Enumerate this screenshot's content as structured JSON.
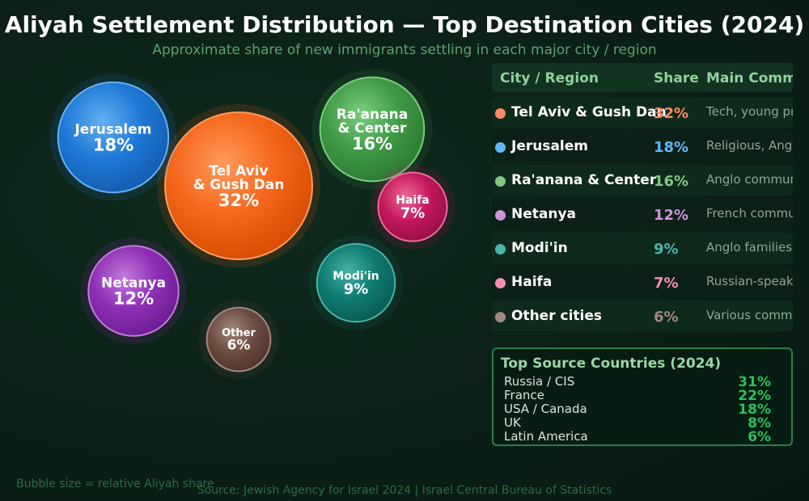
{
  "title": "Aliyah Settlement Distribution — Top Destination Cities (2024)",
  "subtitle": "Approximate share of new immigrants settling in each major city / region",
  "chart_data": {
    "type": "bubble",
    "title": "Aliyah Settlement Distribution — Top Destination Cities (2024)",
    "subtitle": "Approximate share of new immigrants settling in each major city / region",
    "bubbles": [
      {
        "name": "Tel Aviv & Gush Dan",
        "lines": [
          "Tel Aviv",
          "& Gush Dan"
        ],
        "value": 32,
        "label": "32%",
        "color": "#f4661b",
        "light": "#ff9a5c",
        "dark": "#d94f05"
      },
      {
        "name": "Jerusalem",
        "lines": [
          "Jerusalem"
        ],
        "value": 18,
        "label": "18%",
        "color": "#1e78d6",
        "light": "#64b0f2",
        "dark": "#155fb4"
      },
      {
        "name": "Ra'anana & Center",
        "lines": [
          "Ra'anana",
          "& Center"
        ],
        "value": 16,
        "label": "16%",
        "color": "#3f9a46",
        "light": "#7acc7e",
        "dark": "#2f7d35"
      },
      {
        "name": "Netanya",
        "lines": [
          "Netanya"
        ],
        "value": 12,
        "label": "12%",
        "color": "#8e2fb5",
        "light": "#c27adb",
        "dark": "#6f1f96"
      },
      {
        "name": "Modi'in",
        "lines": [
          "Modi'in"
        ],
        "value": 9,
        "label": "9%",
        "color": "#0f7a70",
        "light": "#47b3a7",
        "dark": "#0a5f57"
      },
      {
        "name": "Haifa",
        "lines": [
          "Haifa"
        ],
        "value": 7,
        "label": "7%",
        "color": "#c2185b",
        "light": "#ee6a9a",
        "dark": "#9b1049"
      },
      {
        "name": "Other",
        "lines": [
          "Other"
        ],
        "value": 6,
        "label": "6%",
        "color": "#6d4c41",
        "light": "#a1887f",
        "dark": "#54362d"
      }
    ],
    "size_note": "Bubble size = relative Aliyah share"
  },
  "table": {
    "headers": {
      "city": "City / Region",
      "share": "Share",
      "community": "Main Commu"
    },
    "rows": [
      {
        "city": "Tel Aviv & Gush Dan",
        "share": "32%",
        "community": "Tech, young pro",
        "color": "#ff8a65"
      },
      {
        "city": "Jerusalem",
        "share": "18%",
        "community": "Religious, Anglo",
        "color": "#64b5f6"
      },
      {
        "city": "Ra'anana & Center",
        "share": "16%",
        "community": "Anglo communit",
        "color": "#81c784"
      },
      {
        "city": "Netanya",
        "share": "12%",
        "community": "French commun",
        "color": "#ce93d8"
      },
      {
        "city": "Modi'in",
        "share": "9%",
        "community": "Anglo families",
        "color": "#4db6ac"
      },
      {
        "city": "Haifa",
        "share": "7%",
        "community": "Russian-speakin",
        "color": "#f48fb1"
      },
      {
        "city": "Other cities",
        "share": "6%",
        "community": "Various commu",
        "color": "#a1887f"
      }
    ]
  },
  "sources": {
    "title": "Top Source Countries (2024)",
    "items": [
      {
        "country": "Russia / CIS",
        "share": "31%"
      },
      {
        "country": "France",
        "share": "22%"
      },
      {
        "country": "USA / Canada",
        "share": "18%"
      },
      {
        "country": "UK",
        "share": "8%"
      },
      {
        "country": "Latin America",
        "share": "6%"
      }
    ]
  },
  "footer": {
    "note": "Bubble size = relative Aliyah share",
    "source": "Source: Jewish Agency for Israel 2024  |  Israel Central Bureau of Statistics"
  }
}
